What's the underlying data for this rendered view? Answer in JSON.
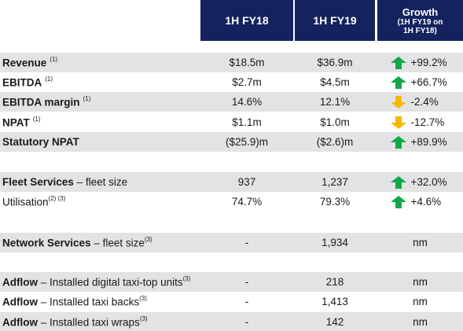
{
  "header": {
    "col1": "1H FY18",
    "col2": "1H FY19",
    "col3_title": "Growth",
    "col3_sub1": "(1H FY19 on",
    "col3_sub2": "1H FY18)"
  },
  "rows": [
    {
      "label_bold": "Revenue",
      "label_rest": "",
      "sup": "(1)",
      "v1": "$18.5m",
      "v2": "$36.9m",
      "growth": "+99.2%",
      "dir": "up"
    },
    {
      "label_bold": "EBITDA",
      "label_rest": "",
      "sup": "(1)",
      "v1": "$2.7m",
      "v2": "$4.5m",
      "growth": "+66.7%",
      "dir": "up"
    },
    {
      "label_bold": "EBITDA margin",
      "label_rest": "",
      "sup": "(1)",
      "v1": "14.6%",
      "v2": "12.1%",
      "growth": "-2.4%",
      "dir": "down"
    },
    {
      "label_bold": "NPAT",
      "label_rest": "",
      "sup": "(1)",
      "v1": "$1.1m",
      "v2": "$1.0m",
      "growth": "-12.7%",
      "dir": "down"
    },
    {
      "label_bold": "Statutory NPAT",
      "label_rest": "",
      "sup": "",
      "v1": "($25.9)m",
      "v2": "($2.6)m",
      "growth": "+89.9%",
      "dir": "up"
    },
    {
      "label_bold": "Fleet Services",
      "label_rest": " – fleet size",
      "sup": "",
      "v1": "937",
      "v2": "1,237",
      "growth": "+32.0%",
      "dir": "up"
    },
    {
      "label_bold": "",
      "label_rest": "Utilisation",
      "sup": "(2) (3)",
      "v1": "74.7%",
      "v2": "79.3%",
      "growth": "+4.6%",
      "dir": "up"
    },
    {
      "label_bold": "Network Services",
      "label_rest": " – fleet size",
      "sup": "(3)",
      "v1": "-",
      "v2": "1,934",
      "growth": "nm",
      "dir": "none"
    },
    {
      "label_bold": "Adflow",
      "label_rest": " – Installed digital taxi-top units",
      "sup": "(3)",
      "v1": "-",
      "v2": "218",
      "growth": "nm",
      "dir": "none"
    },
    {
      "label_bold": "Adflow",
      "label_rest": " – Installed taxi backs",
      "sup": "(3)",
      "v1": "-",
      "v2": "1,413",
      "growth": "nm",
      "dir": "none"
    },
    {
      "label_bold": "Adflow",
      "label_rest": " – Installed taxi wraps",
      "sup": "(3)",
      "v1": "-",
      "v2": "142",
      "growth": "nm",
      "dir": "none"
    }
  ],
  "colors": {
    "header_bg": "#14235e",
    "row_shade": "#e3e3e3",
    "arrow_up": "#10a84a",
    "arrow_down": "#f5b800"
  },
  "icons": {
    "up": "arrow-up-icon",
    "down": "arrow-down-icon"
  }
}
